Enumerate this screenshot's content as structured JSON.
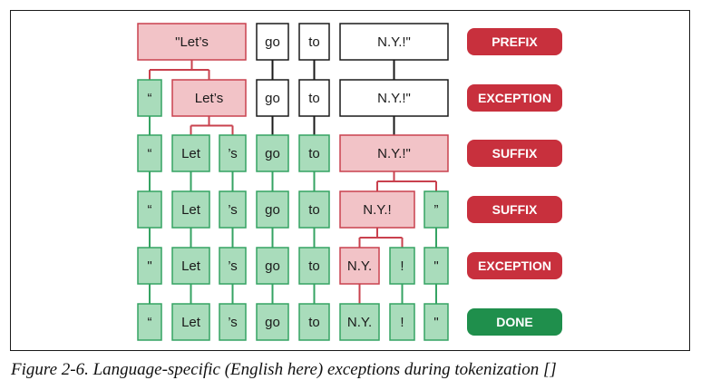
{
  "colors": {
    "pending_fill": "#ffffff",
    "pending_stroke": "#1a1a1a",
    "split_fill": "#f2c3c7",
    "split_stroke": "#c9414e",
    "done_fill": "#a9dcbb",
    "done_stroke": "#35a363",
    "badge_red": "#c8303d",
    "badge_green": "#1f8f4c",
    "connector_black": "#1a1a1a",
    "connector_red": "#c9414e",
    "connector_green": "#35a363"
  },
  "rows": [
    {
      "badge": "PREFIX",
      "badge_color": "red",
      "tokens": [
        {
          "text": "\"Let’s",
          "state": "split"
        },
        {
          "text": "go",
          "state": "pending"
        },
        {
          "text": "to",
          "state": "pending"
        },
        {
          "text": "N.Y.!\"",
          "state": "pending"
        }
      ]
    },
    {
      "badge": "EXCEPTION",
      "badge_color": "red",
      "tokens": [
        {
          "text": "“",
          "state": "done"
        },
        {
          "text": "Let’s",
          "state": "split"
        },
        {
          "text": "go",
          "state": "pending"
        },
        {
          "text": "to",
          "state": "pending"
        },
        {
          "text": "N.Y.!\"",
          "state": "pending"
        }
      ]
    },
    {
      "badge": "SUFFIX",
      "badge_color": "red",
      "tokens": [
        {
          "text": "“",
          "state": "done"
        },
        {
          "text": "Let",
          "state": "done"
        },
        {
          "text": "’s",
          "state": "done"
        },
        {
          "text": "go",
          "state": "done"
        },
        {
          "text": "to",
          "state": "done"
        },
        {
          "text": "N.Y.!\"",
          "state": "split"
        }
      ]
    },
    {
      "badge": "SUFFIX",
      "badge_color": "red",
      "tokens": [
        {
          "text": "“",
          "state": "done"
        },
        {
          "text": "Let",
          "state": "done"
        },
        {
          "text": "’s",
          "state": "done"
        },
        {
          "text": "go",
          "state": "done"
        },
        {
          "text": "to",
          "state": "done"
        },
        {
          "text": "N.Y.!",
          "state": "split"
        },
        {
          "text": "”",
          "state": "done"
        }
      ]
    },
    {
      "badge": "EXCEPTION",
      "badge_color": "red",
      "tokens": [
        {
          "text": "\"",
          "state": "done"
        },
        {
          "text": "Let",
          "state": "done"
        },
        {
          "text": "’s",
          "state": "done"
        },
        {
          "text": "go",
          "state": "done"
        },
        {
          "text": "to",
          "state": "done"
        },
        {
          "text": "N.Y.",
          "state": "split"
        },
        {
          "text": "!",
          "state": "done"
        },
        {
          "text": "\"",
          "state": "done"
        }
      ]
    },
    {
      "badge": "DONE",
      "badge_color": "green",
      "tokens": [
        {
          "text": "“",
          "state": "done"
        },
        {
          "text": "Let",
          "state": "done"
        },
        {
          "text": "’s",
          "state": "done"
        },
        {
          "text": "go",
          "state": "done"
        },
        {
          "text": "to",
          "state": "done"
        },
        {
          "text": "N.Y.",
          "state": "done"
        },
        {
          "text": "!",
          "state": "done"
        },
        {
          "text": "\"",
          "state": "done"
        }
      ]
    }
  ],
  "caption": "Figure 2-6. Language-specific (English here) exceptions during tokenization []"
}
